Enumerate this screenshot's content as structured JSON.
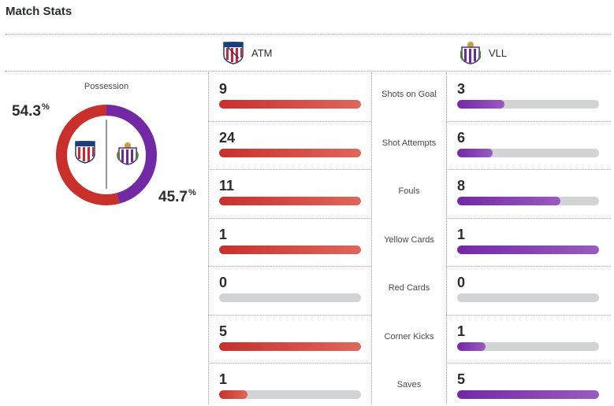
{
  "header": {
    "title": "Match Stats"
  },
  "teams": {
    "home": {
      "abbr": "ATM",
      "color": "#c9302c",
      "crest": "atletico-madrid-crest"
    },
    "away": {
      "abbr": "VLL",
      "color": "#7328a5",
      "crest": "real-valladolid-crest"
    }
  },
  "possession": {
    "label": "Possession",
    "home_value": "54.3",
    "away_value": "45.7",
    "unit": "%",
    "home_fraction": 0.543,
    "away_fraction": 0.457
  },
  "stats": [
    {
      "label": "Shots on Goal",
      "home": "9",
      "away": "3",
      "home_fill": 1.0,
      "away_fill": 0.333
    },
    {
      "label": "Shot Attempts",
      "home": "24",
      "away": "6",
      "home_fill": 1.0,
      "away_fill": 0.25
    },
    {
      "label": "Fouls",
      "home": "11",
      "away": "8",
      "home_fill": 1.0,
      "away_fill": 0.727
    },
    {
      "label": "Yellow Cards",
      "home": "1",
      "away": "1",
      "home_fill": 1.0,
      "away_fill": 1.0
    },
    {
      "label": "Red Cards",
      "home": "0",
      "away": "0",
      "home_fill": 0,
      "away_fill": 0
    },
    {
      "label": "Corner Kicks",
      "home": "5",
      "away": "1",
      "home_fill": 1.0,
      "away_fill": 0.2
    },
    {
      "label": "Saves",
      "home": "1",
      "away": "5",
      "home_fill": 0.2,
      "away_fill": 1.0
    }
  ]
}
